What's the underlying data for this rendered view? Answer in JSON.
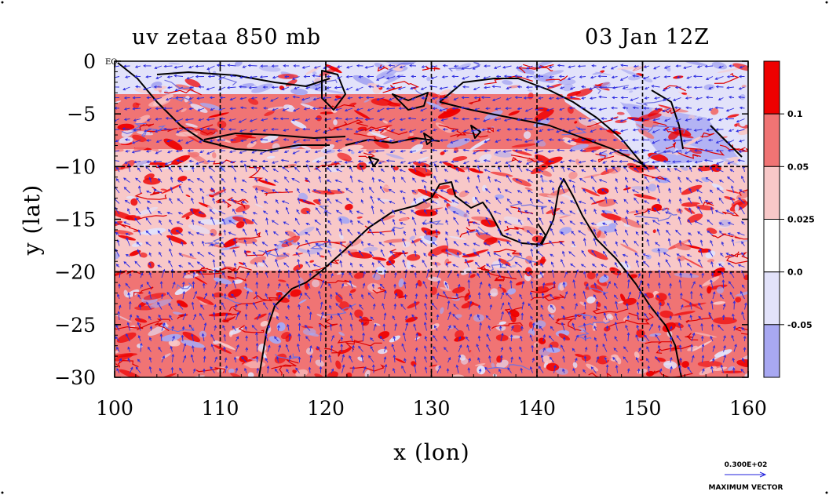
{
  "header": {
    "left_title": "uv zetaa 850 mb",
    "right_title": "03 Jan 12Z"
  },
  "axes": {
    "xlabel": "x (lon)",
    "ylabel": "y (lat)",
    "xlim": [
      100,
      160
    ],
    "ylim": [
      -30,
      0
    ],
    "xticks": [
      "100",
      "110",
      "120",
      "130",
      "140",
      "150",
      "160"
    ],
    "yticks": [
      "0",
      "−5",
      "−10",
      "−15",
      "−20",
      "−25",
      "−30"
    ],
    "eq_label": "EQ",
    "grid": true
  },
  "colorbar": {
    "labels": [
      "0.1",
      "0.05",
      "0.025",
      "0.0",
      "-0.05"
    ],
    "colors": [
      "#ee0000",
      "#f07474",
      "#f8c8c8",
      "#ffffff",
      "#e2e2fa",
      "#a8a8f2"
    ]
  },
  "vector_key": {
    "value": "0.300E+02",
    "label": "MAXIMUM VECTOR",
    "color": "#2222dd"
  },
  "colors": {
    "red_strong": "#ee0000",
    "red_mid": "#f07474",
    "red_light": "#f8c8c8",
    "blue_light": "#e2e2fa",
    "blue_mid": "#a8a8f2",
    "vector": "#2a2ae0",
    "coast": "#000000"
  }
}
